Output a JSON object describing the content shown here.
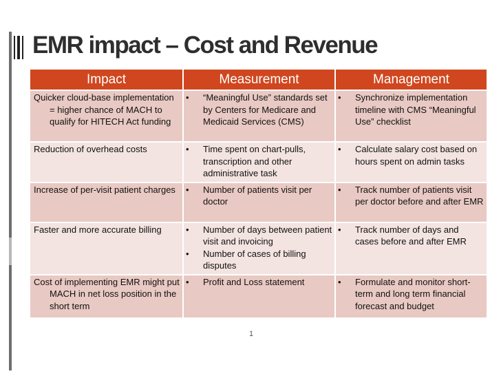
{
  "slide": {
    "title": "EMR impact – Cost and Revenue",
    "page_number": "1"
  },
  "table": {
    "headers": [
      "Impact",
      "Measurement",
      "Management"
    ],
    "rows": [
      {
        "impact": "Quicker cloud-base implementation = higher chance of MACH to qualify for HITECH Act funding",
        "measurement": [
          "“Meaningful Use” standards set by Centers for Medicare and Medicaid Services (CMS)"
        ],
        "management": [
          "Synchronize implementation timeline with CMS “Meaningful Use” checklist"
        ]
      },
      {
        "impact": "Reduction of overhead costs",
        "measurement": [
          "Time spent on chart-pulls, transcription and other administrative task"
        ],
        "management": [
          "Calculate salary cost based on hours spent on admin tasks"
        ]
      },
      {
        "impact": "Increase of per-visit patient charges",
        "measurement": [
          "Number of patients visit per doctor"
        ],
        "management": [
          "Track number of patients visit per doctor before and after EMR"
        ]
      },
      {
        "impact": "Faster and more accurate billing",
        "measurement": [
          "Number of days between patient visit and invoicing",
          "Number of cases of billing disputes"
        ],
        "management": [
          "Track number of days and cases before and after EMR"
        ]
      },
      {
        "impact": "Cost of implementing EMR might put MACH in net loss position in the short term",
        "measurement": [
          "Profit and Loss statement"
        ],
        "management": [
          "Formulate and monitor short-term and long term financial forecast and budget"
        ]
      }
    ]
  }
}
